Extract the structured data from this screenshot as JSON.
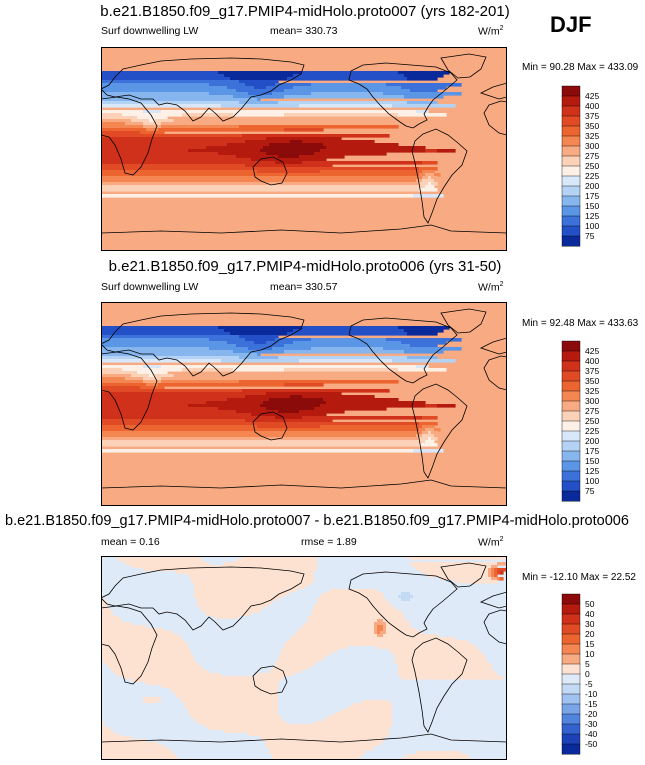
{
  "season": "DJF",
  "panels": [
    {
      "title": "b.e21.B1850.f09_g17.PMIP4-midHolo.proto007 (yrs 182-201)",
      "variable": "Surf downwelling LW",
      "mean_label": "mean= 330.73",
      "units": "W/m",
      "units_exp": "2",
      "minmax": "Min =  90.28 Max = 433.09"
    },
    {
      "title": "b.e21.B1850.f09_g17.PMIP4-midHolo.proto006 (yrs 31-50)",
      "variable": "Surf downwelling LW",
      "mean_label": "mean= 330.57",
      "units": "W/m",
      "units_exp": "2",
      "minmax": "Min =  92.48 Max = 433.63"
    },
    {
      "title": "b.e21.B1850.f09_g17.PMIP4-midHolo.proto007 - b.e21.B1850.f09_g17.PMIP4-midHolo.proto006",
      "mean_label": "mean =   0.16",
      "rmse_label": "rmse =   1.89",
      "units": "W/m",
      "units_exp": "2",
      "minmax": "Min = -12.10 Max =  22.52"
    }
  ],
  "colorbars": {
    "abs": {
      "labels": [
        "425",
        "400",
        "375",
        "350",
        "325",
        "300",
        "275",
        "250",
        "225",
        "200",
        "175",
        "150",
        "125",
        "100",
        "75"
      ],
      "colors": [
        "#8b0a0a",
        "#b51a0f",
        "#d0311a",
        "#e04a24",
        "#ec6530",
        "#f48651",
        "#f8ab83",
        "#fbd1b8",
        "#fdf0e6",
        "#d9e8f8",
        "#b4d2f4",
        "#87b6ee",
        "#5b95e6",
        "#3b71d8",
        "#2450c7",
        "#0a2a9c"
      ]
    },
    "diff": {
      "labels": [
        "50",
        "40",
        "30",
        "20",
        "15",
        "10",
        "5",
        "0",
        "-5",
        "-10",
        "-15",
        "-20",
        "-30",
        "-40",
        "-50"
      ],
      "colors": [
        "#8b0a0a",
        "#b51a0f",
        "#d0311a",
        "#e04a24",
        "#ec6530",
        "#f48651",
        "#f8ab83",
        "#fde2d2",
        "#dfeaf8",
        "#c3d9f4",
        "#9fc2f0",
        "#79a5e8",
        "#5184dc",
        "#3361cd",
        "#1d42b8",
        "#0a2a9c"
      ]
    }
  },
  "chart_data": [
    {
      "type": "heatmap",
      "title": "b.e21.B1850.f09_g17.PMIP4-midHolo.proto007 (yrs 182-201)",
      "variable": "Surf downwelling LW",
      "units": "W/m2",
      "season": "DJF",
      "mean": 330.73,
      "min": 90.28,
      "max": 433.09,
      "contour_levels": [
        75,
        100,
        125,
        150,
        175,
        200,
        225,
        250,
        275,
        300,
        325,
        350,
        375,
        400,
        425
      ],
      "zonal_profile_approx": {
        "lat": [
          80,
          60,
          40,
          20,
          0,
          -20,
          -40,
          -60,
          -75
        ],
        "value": [
          150,
          200,
          270,
          350,
          410,
          380,
          300,
          250,
          120
        ]
      }
    },
    {
      "type": "heatmap",
      "title": "b.e21.B1850.f09_g17.PMIP4-midHolo.proto006 (yrs 31-50)",
      "variable": "Surf downwelling LW",
      "units": "W/m2",
      "season": "DJF",
      "mean": 330.57,
      "min": 92.48,
      "max": 433.63,
      "contour_levels": [
        75,
        100,
        125,
        150,
        175,
        200,
        225,
        250,
        275,
        300,
        325,
        350,
        375,
        400,
        425
      ],
      "zonal_profile_approx": {
        "lat": [
          80,
          60,
          40,
          20,
          0,
          -20,
          -40,
          -60,
          -75
        ],
        "value": [
          150,
          200,
          270,
          350,
          410,
          380,
          300,
          250,
          120
        ]
      }
    },
    {
      "type": "heatmap",
      "title": "b.e21.B1850.f09_g17.PMIP4-midHolo.proto007 - b.e21.B1850.f09_g17.PMIP4-midHolo.proto006",
      "units": "W/m2",
      "season": "DJF",
      "mean": 0.16,
      "rmse": 1.89,
      "min": -12.1,
      "max": 22.52,
      "contour_levels": [
        -50,
        -40,
        -30,
        -20,
        -15,
        -10,
        -5,
        0,
        5,
        10,
        15,
        20,
        30,
        40,
        50
      ]
    }
  ]
}
